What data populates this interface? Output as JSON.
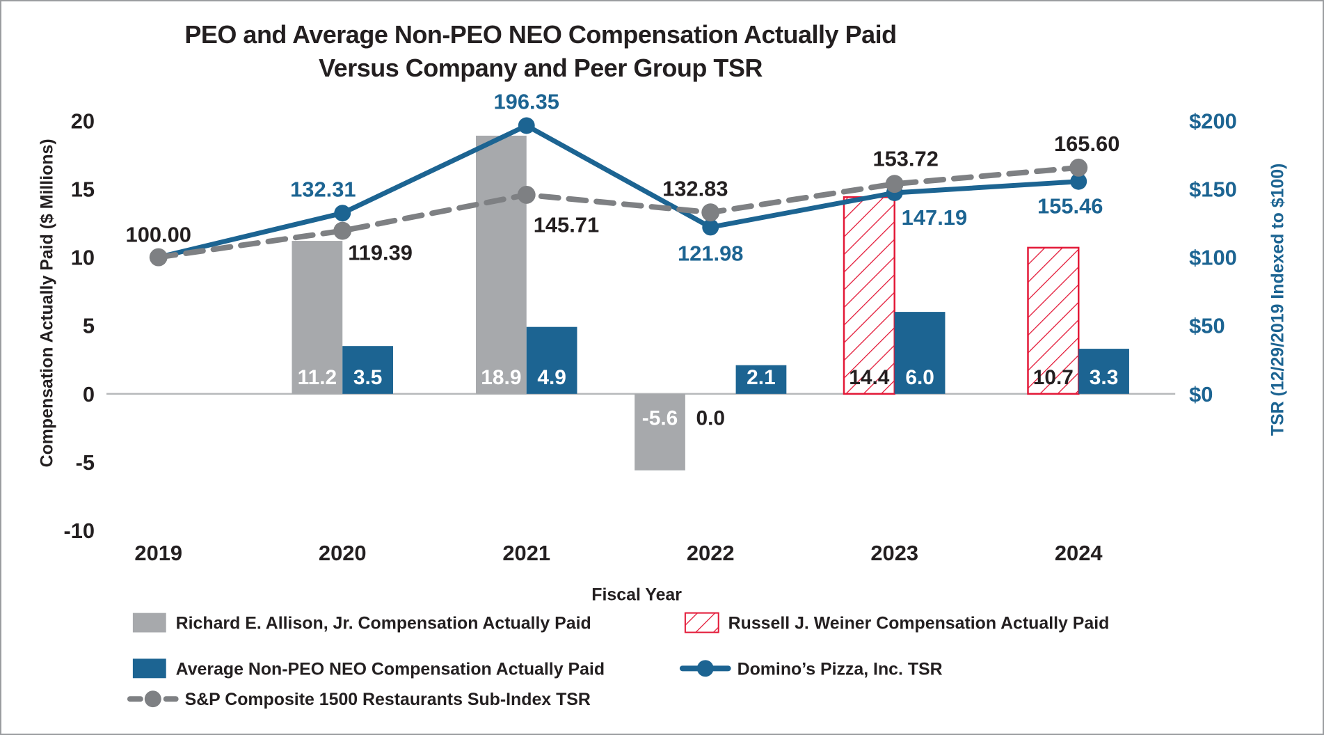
{
  "title": {
    "line1": "PEO and Average Non-PEO NEO Compensation Actually Paid",
    "line2": "Versus Company and Peer Group TSR"
  },
  "axes": {
    "left": {
      "title": "Compensation Actually Paid ($ Millions)",
      "ticks": [
        "20",
        "15",
        "10",
        "5",
        "0",
        "-5",
        "-10"
      ],
      "tick_values": [
        20,
        15,
        10,
        5,
        0,
        -5,
        -10
      ]
    },
    "right": {
      "title": "TSR (12/29/2019 Indexed to $100)",
      "ticks": [
        "$200",
        "$150",
        "$100",
        "$50",
        "$0"
      ],
      "tick_values": [
        200,
        150,
        100,
        50,
        0
      ]
    },
    "x": {
      "title": "Fiscal Year"
    }
  },
  "chart_data": {
    "type": "combo: grouped bars (left axis, $ millions) + indexed TSR lines (right axis), dual axis",
    "categories": [
      "2019",
      "2020",
      "2021",
      "2022",
      "2023",
      "2024"
    ],
    "left_range": [
      -10,
      20
    ],
    "right_range": [
      0,
      200
    ],
    "grid": "off",
    "bar_series": [
      {
        "name": "Richard E. Allison, Jr. Compensation Actually Paid",
        "color": "#A7A9AC",
        "fill": "solid",
        "axis": "left",
        "values": [
          null,
          11.2,
          18.9,
          -5.6,
          null,
          null
        ],
        "labels": [
          null,
          "11.2",
          "18.9",
          "-5.6",
          null,
          null
        ],
        "label_color": "#FFFFFF"
      },
      {
        "name": "Russell J. Weiner Compensation Actually Paid",
        "color": "#E31837",
        "fill": "hatched",
        "axis": "left",
        "values": [
          null,
          null,
          null,
          0.0,
          14.4,
          10.7
        ],
        "labels": [
          null,
          null,
          null,
          "0.0",
          "14.4",
          "10.7"
        ],
        "label_color": "#231F20"
      },
      {
        "name": "Average Non-PEO NEO Compensation Actually Paid",
        "color": "#1C6492",
        "fill": "solid",
        "axis": "left",
        "values": [
          null,
          3.5,
          4.9,
          2.1,
          6.0,
          3.3
        ],
        "labels": [
          null,
          "3.5",
          "4.9",
          "2.1",
          "6.0",
          "3.3"
        ],
        "label_color": "#FFFFFF"
      }
    ],
    "line_series": [
      {
        "name": "Domino’s Pizza, Inc. TSR",
        "color": "#1C6492",
        "dash": "solid",
        "axis": "right",
        "values": [
          100.0,
          132.31,
          196.35,
          121.98,
          147.19,
          155.46
        ],
        "labels": [
          null,
          "132.31",
          "196.35",
          "121.98",
          "147.19",
          "155.46"
        ],
        "label_color": "#1C6492"
      },
      {
        "name": "S&P Composite 1500 Restaurants Sub-Index TSR",
        "color": "#7E8083",
        "dash": "dashed",
        "axis": "right",
        "values": [
          100.0,
          119.39,
          145.71,
          132.83,
          153.72,
          165.6
        ],
        "labels": [
          "100.00",
          "119.39",
          "145.71",
          "132.83",
          "153.72",
          "165.60"
        ],
        "label_color": "#231F20"
      }
    ]
  },
  "legend": [
    {
      "marker": "bar-solid-gray",
      "label": "Richard E. Allison, Jr. Compensation Actually Paid"
    },
    {
      "marker": "bar-hatched-red",
      "label": "Russell J. Weiner Compensation Actually Paid"
    },
    {
      "marker": "bar-solid-blue",
      "label": "Average Non-PEO NEO Compensation Actually Paid"
    },
    {
      "marker": "line-solid-blue",
      "label": "Domino’s Pizza, Inc. TSR"
    },
    {
      "marker": "line-dashed-gray",
      "label": "S&P Composite 1500 Restaurants Sub-Index TSR"
    }
  ],
  "colors": {
    "blue": "#1C6492",
    "red": "#E31837",
    "bar_gray": "#A7A9AC",
    "line_gray": "#7E8083",
    "text_black": "#231F20",
    "axis_line": "#B7B9BB",
    "page_border": "#9B9DA0",
    "white": "#FFFFFF"
  }
}
